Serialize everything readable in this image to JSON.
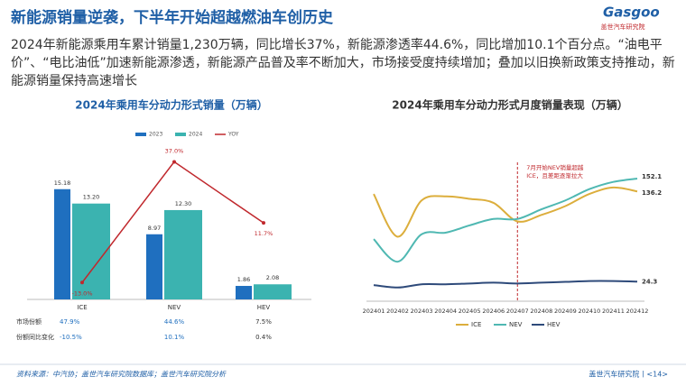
{
  "header": {
    "title": "新能源销量逆袭，下半年开始超越燃油车创历史",
    "logo_brand": "Gasgoo",
    "logo_text": "盖世汽车研究院"
  },
  "body_text": "2024年新能源乘用车累计销量1,230万辆，同比增长37%，新能源渗透率44.6%，同比增加10.1个百分点。“油电平价”、“电比油低”加速新能源渗透，新能源产品普及率不断加大，市场接受度持续增加；叠加以旧换新政策支持推动，新能源销量保持高速增长",
  "chart_data": [
    {
      "type": "bar",
      "title": "2024年乘用车分动力形式销量（万辆）",
      "categories": [
        "ICE",
        "NEV",
        "HEV"
      ],
      "ylim": [
        0,
        22.6
      ],
      "y2lim": [
        -20,
        48
      ],
      "legend": "top",
      "series": [
        {
          "name": "2023",
          "color": "#1f6fbf",
          "values": [
            15.18,
            8.97,
            1.86
          ]
        },
        {
          "name": "2024",
          "color": "#3bb3b0",
          "values": [
            13.2,
            12.3,
            2.08
          ],
          "value_labels": [
            "13.20",
            "12.30",
            "2.08"
          ]
        },
        {
          "name": "YOY",
          "color": "#c0282d",
          "type": "line",
          "axis": "y2",
          "values": [
            -13.0,
            37.0,
            11.7
          ],
          "value_labels": [
            "-13.0%",
            "37.0%",
            "11.7%"
          ]
        }
      ],
      "table": {
        "rows": [
          {
            "label": "市场份额",
            "cells": [
              "47.9%",
              "44.6%",
              "7.5%"
            ]
          },
          {
            "label": "份额同比变化",
            "cells": [
              "-10.5%",
              "10.1%",
              "0.4%"
            ]
          }
        ]
      }
    },
    {
      "type": "line",
      "title": "2024年乘用车分动力形式月度销量表现（万辆）",
      "categories": [
        "202401",
        "202402",
        "202403",
        "202404",
        "202405",
        "202406",
        "202407",
        "202408",
        "202409",
        "202410",
        "202411",
        "202412"
      ],
      "ylim": [
        0,
        170
      ],
      "legend": "bottom",
      "annotation": "7月开始NEV销量超越ICE，且差距逐渐拉大",
      "annotation_category": 6,
      "series": [
        {
          "name": "ICE",
          "color": "#dcae3c",
          "values": [
            133,
            80,
            125,
            130,
            127,
            122,
            99,
            107,
            118,
            133,
            141,
            136.2
          ]
        },
        {
          "name": "NEV",
          "color": "#4fb8b2",
          "values": [
            77,
            49,
            83,
            85,
            94,
            102,
            102,
            114,
            125,
            139,
            148,
            152.1
          ]
        },
        {
          "name": "HEV",
          "color": "#2e4a7a",
          "values": [
            20,
            17,
            21,
            21,
            22,
            23,
            22,
            23,
            24,
            25,
            25,
            24.3
          ]
        }
      ]
    }
  ],
  "footer": {
    "source": "资料来源：中汽协；盖世汽车研究院数据库；盖世汽车研究院分析",
    "page": "盖世汽车研究院丨<14>"
  }
}
